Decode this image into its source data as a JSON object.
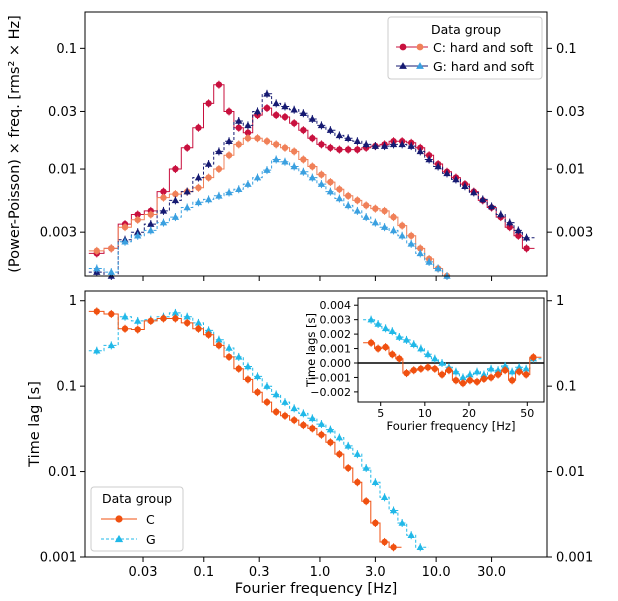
{
  "colors": {
    "C_power_hard": "#c8103e",
    "C_power_soft": "#f08058",
    "G_power_hard": "#161a72",
    "G_power_soft": "#3aa0e0",
    "C_lag": "#f05010",
    "G_lag": "#20b8e8",
    "zero_line": "#000000"
  },
  "chart_data": [
    {
      "type": "line",
      "panel": "power-spectrum",
      "xscale": "log",
      "yscale": "log",
      "xlim": [
        0.0095,
        90
      ],
      "ylim": [
        0.0013,
        0.2
      ],
      "ylabel": "(Power-Poisson) × freq. [rms² × Hz]",
      "yticks": [
        {
          "v": 0.003,
          "label": "0.003"
        },
        {
          "v": 0.01,
          "label": "0.01"
        },
        {
          "v": 0.03,
          "label": "0.03"
        },
        {
          "v": 0.1,
          "label": "0.1"
        }
      ],
      "legend": {
        "title": "Data group",
        "entries": [
          "C: hard and soft",
          "G: hard and soft"
        ],
        "position": "upper-right"
      },
      "series": [
        {
          "name": "C: hard and soft",
          "group": "C",
          "band": "hard",
          "x": [
            0.012,
            0.016,
            0.021,
            0.027,
            0.035,
            0.045,
            0.057,
            0.072,
            0.09,
            0.11,
            0.135,
            0.165,
            0.2,
            0.24,
            0.29,
            0.35,
            0.42,
            0.5,
            0.6,
            0.72,
            0.86,
            1.03,
            1.23,
            1.47,
            1.75,
            2.1,
            2.5,
            3.0,
            3.6,
            4.3,
            5.1,
            6.1,
            7.3,
            8.7,
            10.4,
            12.4,
            14.8,
            17.7,
            21.1,
            25.2,
            30.0,
            36.0,
            43.0,
            51.0,
            60.0
          ],
          "y": [
            0.002,
            0.0022,
            0.0035,
            0.0042,
            0.0045,
            0.0065,
            0.01,
            0.015,
            0.022,
            0.035,
            0.05,
            0.03,
            0.022,
            0.02,
            0.028,
            0.032,
            0.028,
            0.027,
            0.024,
            0.021,
            0.018,
            0.016,
            0.015,
            0.0145,
            0.0145,
            0.0145,
            0.015,
            0.0155,
            0.016,
            0.017,
            0.017,
            0.0165,
            0.015,
            0.013,
            0.011,
            0.0095,
            0.0085,
            0.0075,
            0.0065,
            0.0055,
            0.0048,
            0.004,
            0.0033,
            0.0028,
            0.0022
          ]
        },
        {
          "name": "C: hard and soft",
          "group": "C",
          "band": "soft",
          "x": [
            0.012,
            0.016,
            0.021,
            0.027,
            0.035,
            0.045,
            0.057,
            0.072,
            0.09,
            0.11,
            0.135,
            0.165,
            0.2,
            0.24,
            0.29,
            0.35,
            0.42,
            0.5,
            0.6,
            0.72,
            0.86,
            1.03,
            1.23,
            1.47,
            1.75,
            2.1,
            2.5,
            3.0,
            3.6,
            4.3,
            5.1,
            6.1,
            7.3,
            8.7,
            10.4,
            12.4
          ],
          "y": [
            0.0021,
            0.0022,
            0.0033,
            0.0038,
            0.0042,
            0.0058,
            0.0062,
            0.0065,
            0.007,
            0.0085,
            0.01,
            0.013,
            0.016,
            0.018,
            0.018,
            0.017,
            0.016,
            0.015,
            0.014,
            0.012,
            0.0105,
            0.009,
            0.0078,
            0.0068,
            0.006,
            0.0055,
            0.005,
            0.0047,
            0.0045,
            0.004,
            0.0034,
            0.0028,
            0.0022,
            0.0018,
            0.0015,
            0.0013
          ]
        },
        {
          "name": "G: hard and soft",
          "group": "G",
          "band": "hard",
          "x": [
            0.012,
            0.016,
            0.021,
            0.027,
            0.035,
            0.045,
            0.057,
            0.072,
            0.09,
            0.11,
            0.135,
            0.165,
            0.2,
            0.24,
            0.29,
            0.35,
            0.42,
            0.5,
            0.6,
            0.72,
            0.86,
            1.03,
            1.23,
            1.47,
            1.75,
            2.1,
            2.5,
            3.0,
            3.6,
            4.3,
            5.1,
            6.1,
            7.3,
            8.7,
            10.4,
            12.4,
            14.8,
            17.7,
            21.1,
            25.2,
            30.0,
            36.0,
            43.0,
            51.0,
            60.0
          ],
          "y": [
            0.0014,
            0.0013,
            0.0026,
            0.003,
            0.0035,
            0.0045,
            0.0055,
            0.0065,
            0.0085,
            0.011,
            0.014,
            0.017,
            0.025,
            0.023,
            0.03,
            0.042,
            0.035,
            0.033,
            0.031,
            0.029,
            0.026,
            0.023,
            0.021,
            0.019,
            0.018,
            0.017,
            0.016,
            0.0155,
            0.0155,
            0.016,
            0.016,
            0.0155,
            0.014,
            0.012,
            0.0105,
            0.0092,
            0.0082,
            0.0072,
            0.0064,
            0.0056,
            0.0049,
            0.0042,
            0.0036,
            0.0031,
            0.0027
          ]
        },
        {
          "name": "G: hard and soft",
          "group": "G",
          "band": "soft",
          "x": [
            0.012,
            0.016,
            0.021,
            0.027,
            0.035,
            0.045,
            0.057,
            0.072,
            0.09,
            0.11,
            0.135,
            0.165,
            0.2,
            0.24,
            0.29,
            0.35,
            0.42,
            0.5,
            0.6,
            0.72,
            0.86,
            1.03,
            1.23,
            1.47,
            1.75,
            2.1,
            2.5,
            3.0,
            3.6,
            4.3,
            5.1,
            6.1,
            7.3,
            8.7,
            10.4,
            12.4
          ],
          "y": [
            0.0015,
            0.0014,
            0.0025,
            0.0028,
            0.0031,
            0.0036,
            0.004,
            0.0048,
            0.0053,
            0.0056,
            0.006,
            0.0064,
            0.0068,
            0.0075,
            0.0085,
            0.0098,
            0.012,
            0.0115,
            0.0105,
            0.0095,
            0.0085,
            0.0075,
            0.0065,
            0.0057,
            0.005,
            0.0045,
            0.004,
            0.0036,
            0.0033,
            0.0031,
            0.0028,
            0.0024,
            0.002,
            0.0017,
            0.0015,
            0.0013
          ]
        }
      ]
    },
    {
      "type": "line",
      "panel": "time-lag",
      "xscale": "log",
      "yscale": "log",
      "xlim": [
        0.0095,
        90
      ],
      "ylim": [
        0.001,
        1.3
      ],
      "xlabel": "Fourier frequency [Hz]",
      "ylabel": "Time lag [s]",
      "xticks": [
        {
          "v": 0.03,
          "label": "0.03"
        },
        {
          "v": 0.1,
          "label": "0.1"
        },
        {
          "v": 0.3,
          "label": "0.3"
        },
        {
          "v": 1,
          "label": "1.0"
        },
        {
          "v": 3,
          "label": "3.0"
        },
        {
          "v": 10,
          "label": "10.0"
        },
        {
          "v": 30,
          "label": "30.0"
        }
      ],
      "yticks": [
        {
          "v": 0.001,
          "label": "0.001"
        },
        {
          "v": 0.01,
          "label": "0.01"
        },
        {
          "v": 0.1,
          "label": "0.1"
        },
        {
          "v": 1,
          "label": "1"
        }
      ],
      "legend": {
        "title": "Data group",
        "entries": [
          "C",
          "G"
        ],
        "position": "lower-left"
      },
      "series": [
        {
          "name": "C",
          "x": [
            0.012,
            0.016,
            0.021,
            0.027,
            0.035,
            0.045,
            0.057,
            0.072,
            0.09,
            0.11,
            0.135,
            0.165,
            0.2,
            0.24,
            0.29,
            0.35,
            0.42,
            0.5,
            0.6,
            0.72,
            0.86,
            1.03,
            1.23,
            1.47,
            1.75,
            2.1,
            2.5,
            3.0,
            3.6,
            4.3
          ],
          "y": [
            0.75,
            0.7,
            0.47,
            0.46,
            0.58,
            0.62,
            0.62,
            0.55,
            0.47,
            0.4,
            0.3,
            0.22,
            0.16,
            0.12,
            0.085,
            0.065,
            0.05,
            0.045,
            0.04,
            0.035,
            0.032,
            0.027,
            0.022,
            0.016,
            0.011,
            0.0075,
            0.0045,
            0.0025,
            0.0015,
            0.0013
          ]
        },
        {
          "name": "G",
          "x": [
            0.012,
            0.016,
            0.021,
            0.027,
            0.035,
            0.045,
            0.057,
            0.072,
            0.09,
            0.11,
            0.135,
            0.165,
            0.2,
            0.24,
            0.29,
            0.35,
            0.42,
            0.5,
            0.6,
            0.72,
            0.86,
            1.03,
            1.23,
            1.47,
            1.75,
            2.1,
            2.5,
            3.0,
            3.6,
            4.3,
            5.1,
            6.1,
            7.3
          ],
          "y": [
            0.26,
            0.3,
            0.65,
            0.58,
            0.6,
            0.65,
            0.72,
            0.65,
            0.55,
            0.45,
            0.35,
            0.28,
            0.22,
            0.17,
            0.13,
            0.1,
            0.08,
            0.065,
            0.055,
            0.048,
            0.042,
            0.036,
            0.031,
            0.025,
            0.02,
            0.016,
            0.011,
            0.0075,
            0.005,
            0.0035,
            0.0025,
            0.0018,
            0.0013
          ]
        }
      ]
    },
    {
      "type": "line",
      "panel": "time-lag-inset",
      "xscale": "log",
      "yscale": "linear",
      "xlim": [
        3.5,
        65
      ],
      "ylim": [
        -0.0027,
        0.0045
      ],
      "xlabel": "Fourier frequency [Hz]",
      "ylabel": "Time lags [s]",
      "xticks": [
        {
          "v": 5,
          "label": "5"
        },
        {
          "v": 10,
          "label": "10"
        },
        {
          "v": 20,
          "label": "20"
        },
        {
          "v": 50,
          "label": "50"
        }
      ],
      "yticks": [
        {
          "v": -0.002,
          "label": "−0.002"
        },
        {
          "v": -0.001,
          "label": "−0.001"
        },
        {
          "v": 0,
          "label": "0.000"
        },
        {
          "v": 0.001,
          "label": "0.001"
        },
        {
          "v": 0.002,
          "label": "0.002"
        },
        {
          "v": 0.003,
          "label": "0.003"
        },
        {
          "v": 0.004,
          "label": "0.004"
        }
      ],
      "zero_line": true,
      "series": [
        {
          "name": "C",
          "x": [
            4.3,
            4.8,
            5.4,
            6.0,
            6.7,
            7.5,
            8.4,
            9.4,
            10.5,
            11.7,
            13.1,
            14.6,
            16.3,
            18.2,
            20.3,
            22.7,
            25.3,
            28.3,
            31.6,
            35.3,
            39.4,
            44.0,
            49.1,
            55.0
          ],
          "y": [
            0.0014,
            0.001,
            0.0011,
            0.0006,
            0.0003,
            -0.0007,
            -0.0005,
            -0.0004,
            -0.0003,
            -0.0004,
            -0.0008,
            -0.0005,
            -0.0012,
            -0.0014,
            -0.0012,
            -0.0013,
            -0.0011,
            -0.001,
            -0.0008,
            -0.0005,
            -0.0012,
            -0.0006,
            -0.0008,
            0.0004
          ]
        },
        {
          "name": "G",
          "x": [
            4.3,
            4.8,
            5.4,
            6.0,
            6.7,
            7.5,
            8.4,
            9.4,
            10.5,
            11.7,
            13.1,
            14.6,
            16.3,
            18.2,
            20.3,
            22.7,
            25.3,
            28.3,
            31.6,
            35.3,
            39.4,
            44.0,
            49.1,
            55.0
          ],
          "y": [
            0.003,
            0.0027,
            0.0024,
            0.0022,
            0.0018,
            0.0016,
            0.0013,
            0.001,
            0.0006,
            0.0003,
            0.0,
            -0.0003,
            -0.0006,
            -0.001,
            -0.0008,
            -0.0006,
            -0.0008,
            -0.0004,
            -0.0005,
            -0.0002,
            -0.0006,
            -0.0003,
            -0.0004,
            0.0003
          ]
        }
      ]
    }
  ]
}
